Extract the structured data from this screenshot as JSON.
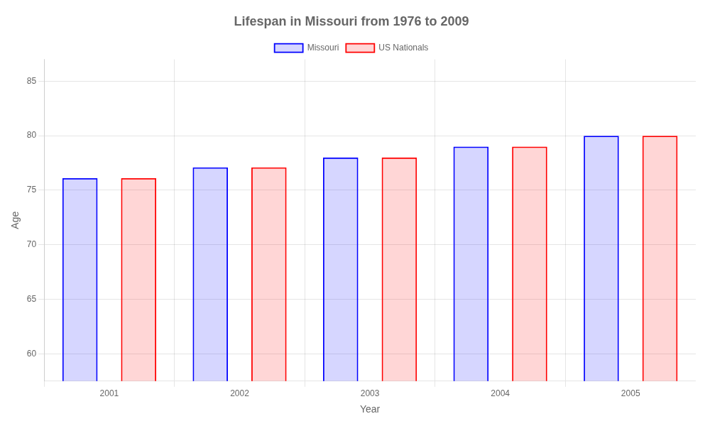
{
  "chart_data": {
    "type": "bar",
    "title": "Lifespan in Missouri from 1976 to 2009",
    "x_label": "Year",
    "y_label": "Age",
    "categories": [
      "2001",
      "2002",
      "2003",
      "2004",
      "2005"
    ],
    "series": [
      {
        "name": "Missouri",
        "color": "#0000ff",
        "values": [
          76.1,
          77.1,
          78.0,
          79.0,
          80.0
        ]
      },
      {
        "name": "US Nationals",
        "color": "#ff0000",
        "values": [
          76.1,
          77.1,
          78.0,
          79.0,
          80.0
        ]
      }
    ],
    "ylim": [
      57.5,
      87
    ],
    "yticks": [
      60,
      65,
      70,
      75,
      80,
      85
    ],
    "grid": true,
    "legend": "top"
  }
}
